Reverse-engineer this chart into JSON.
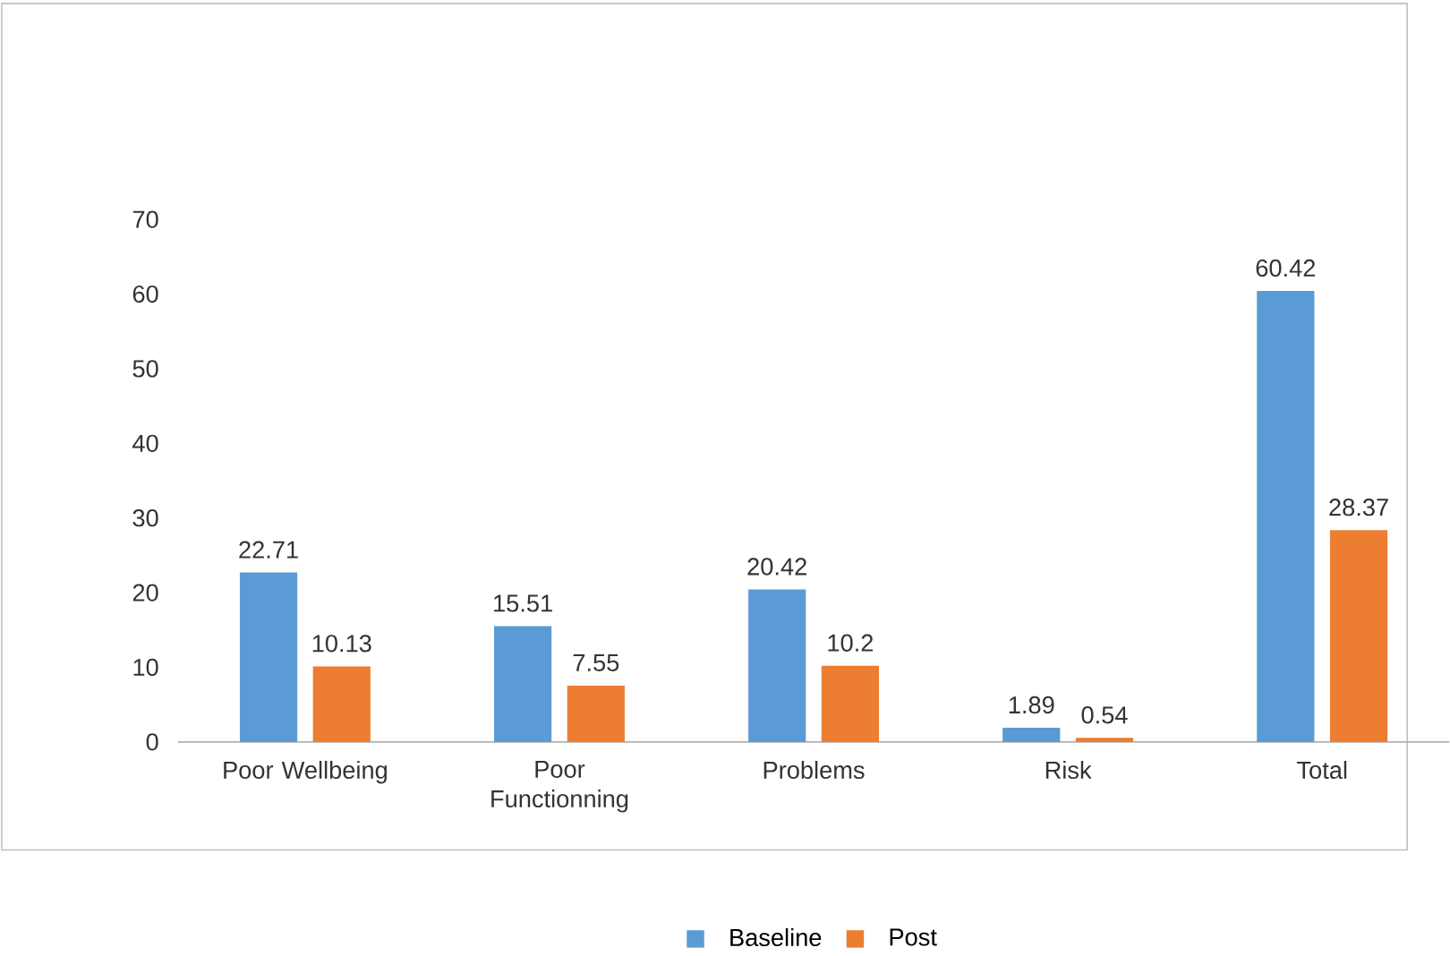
{
  "chart_data": {
    "type": "bar",
    "categories": [
      "Poor Wellbeing",
      "Poor Functionning",
      "Problems",
      "Risk",
      "Total"
    ],
    "series": [
      {
        "name": "Baseline",
        "color": "#5b9bd5",
        "values": [
          22.71,
          15.51,
          20.42,
          1.89,
          60.42
        ]
      },
      {
        "name": "Post",
        "color": "#ed7d31",
        "values": [
          10.13,
          7.55,
          10.2,
          0.54,
          28.37
        ]
      }
    ],
    "ylim": [
      0,
      70
    ],
    "yticks": [
      0,
      10,
      20,
      30,
      40,
      50,
      60,
      70
    ],
    "data_labels": true,
    "legend": "bottom"
  }
}
